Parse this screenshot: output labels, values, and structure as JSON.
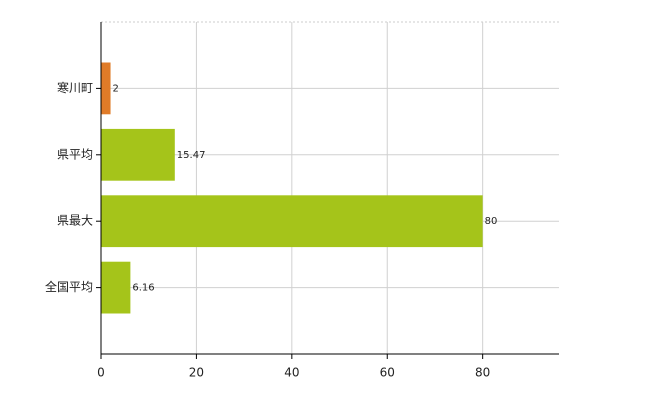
{
  "chart_data": {
    "type": "hbar",
    "categories": [
      "寒川町",
      "県平均",
      "県最大",
      "全国平均"
    ],
    "values": [
      2,
      15.47,
      80,
      6.16
    ],
    "colors": [
      "#e07b28",
      "#a5c41a",
      "#a5c41a",
      "#a5c41a"
    ],
    "xlim": [
      0,
      96
    ],
    "xticks": [
      0,
      20,
      40,
      60,
      80
    ],
    "grid": true
  }
}
